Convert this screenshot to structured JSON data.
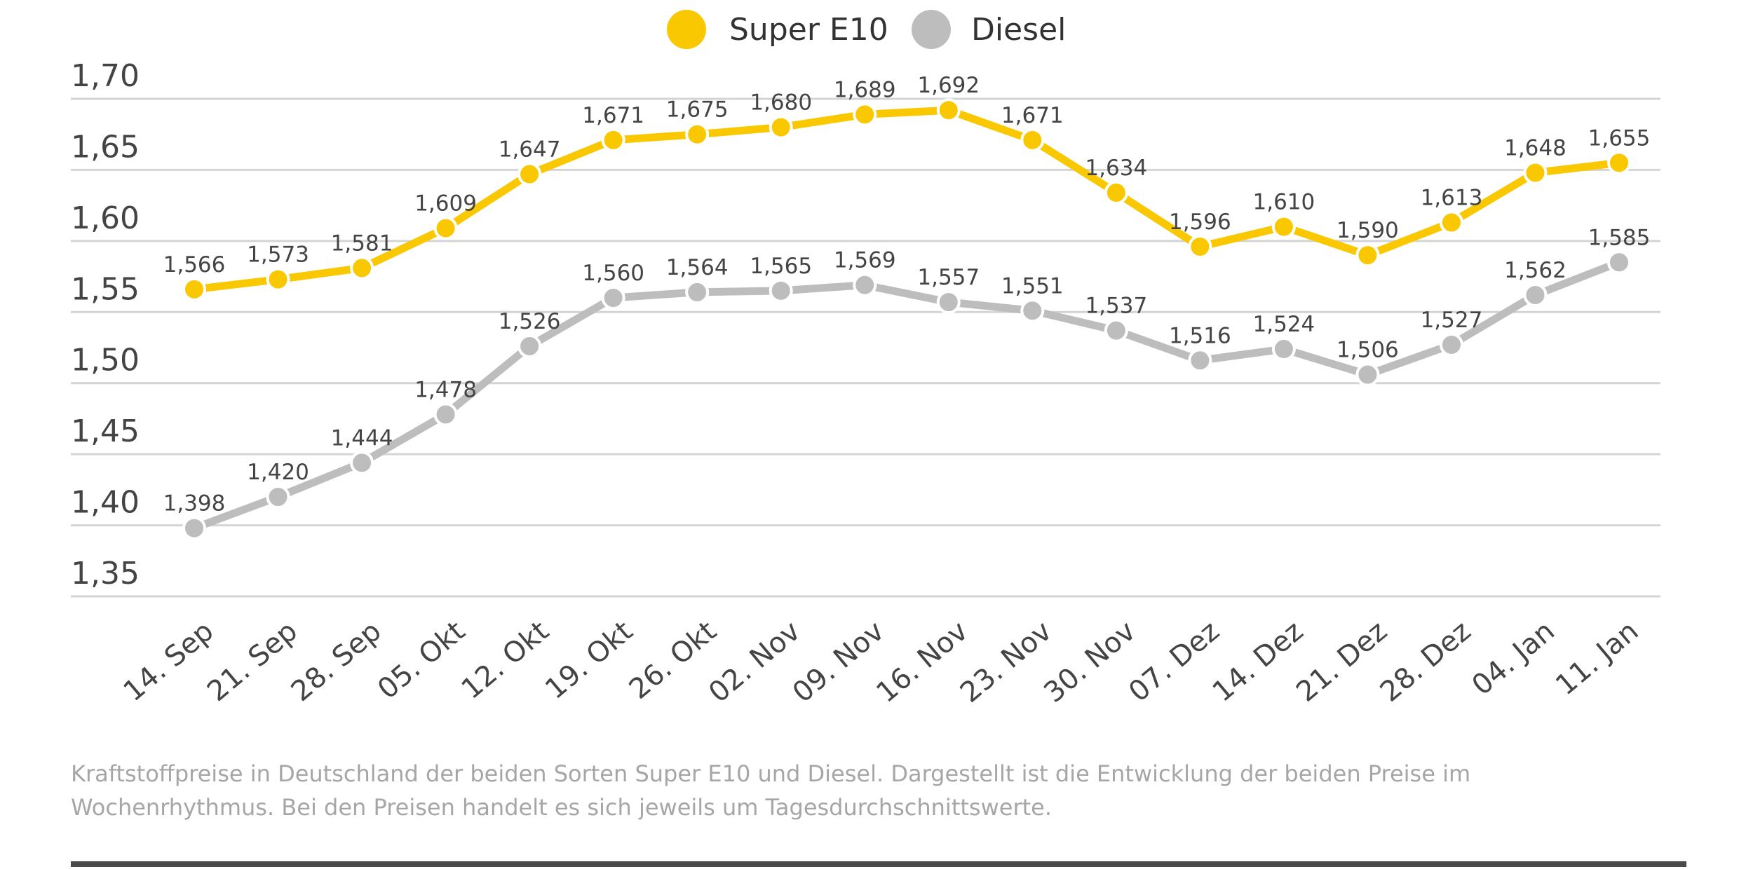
{
  "chart_data": {
    "type": "line",
    "title": "",
    "xlabel": "",
    "ylabel": "",
    "categories": [
      "14. Sep",
      "21. Sep",
      "28. Sep",
      "05. Okt",
      "12. Okt",
      "19. Okt",
      "26. Okt",
      "02. Nov",
      "09. Nov",
      "16. Nov",
      "23. Nov",
      "30. Nov",
      "07. Dez",
      "14. Dez",
      "21. Dez",
      "28. Dez",
      "04. Jan",
      "11. Jan"
    ],
    "series": [
      {
        "name": "Super E10",
        "color": "#f9c800",
        "values": [
          1.566,
          1.573,
          1.581,
          1.609,
          1.647,
          1.671,
          1.675,
          1.68,
          1.689,
          1.692,
          1.671,
          1.634,
          1.596,
          1.61,
          1.59,
          1.613,
          1.648,
          1.655
        ],
        "labels": [
          "1,566",
          "1,573",
          "1,581",
          "1,609",
          "1,647",
          "1,671",
          "1,675",
          "1,680",
          "1,689",
          "1,692",
          "1,671",
          "1,634",
          "1,596",
          "1,610",
          "1,590",
          "1,613",
          "1,648",
          "1,655"
        ]
      },
      {
        "name": "Diesel",
        "color": "#bdbdbd",
        "values": [
          1.398,
          1.42,
          1.444,
          1.478,
          1.526,
          1.56,
          1.564,
          1.565,
          1.569,
          1.557,
          1.551,
          1.537,
          1.516,
          1.524,
          1.506,
          1.527,
          1.562,
          1.585
        ],
        "labels": [
          "1,398",
          "1,420",
          "1,444",
          "1,478",
          "1,526",
          "1,560",
          "1,564",
          "1,565",
          "1,569",
          "1,557",
          "1,551",
          "1,537",
          "1,516",
          "1,524",
          "1,506",
          "1,527",
          "1,562",
          "1,585"
        ]
      }
    ],
    "ylim": [
      1.35,
      1.7
    ],
    "yticks": [
      1.35,
      1.4,
      1.45,
      1.5,
      1.55,
      1.6,
      1.65,
      1.7
    ],
    "ytick_labels": [
      "1,35",
      "1,40",
      "1,45",
      "1,50",
      "1,55",
      "1,60",
      "1,65",
      "1,70"
    ],
    "grid": true,
    "legend_position": "top-center",
    "gridline_color": "#d4d4d4",
    "text_color": "#444444"
  },
  "legend": [
    {
      "label": "Super E10",
      "color": "#f9c800"
    },
    {
      "label": "Diesel",
      "color": "#bdbdbd"
    }
  ],
  "caption": "Kraftstoffpreise in Deutschland der beiden Sorten Super E10 und Diesel. Dargestellt ist die Entwicklung der beiden Preise im Wochenrhythmus. Bei den Preisen handelt es sich jeweils um Tagesdurchschnittswerte."
}
